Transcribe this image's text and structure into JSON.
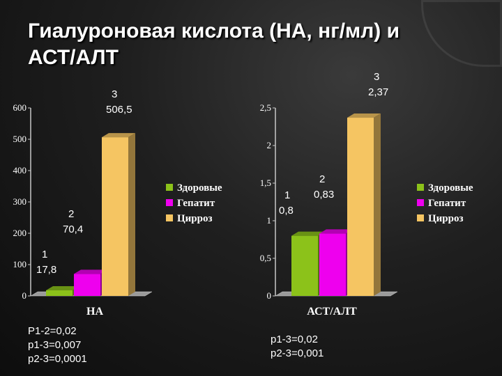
{
  "slide": {
    "title": "Гиалуроновая кислота (НА, нг/мл) и\nАСТ/АЛТ"
  },
  "colors": {
    "healthy": "#8cc21a",
    "hepatitis": "#ee00ee",
    "cirrhosis": "#f5c562",
    "axis": "#c8c8c8",
    "label": "#ffffff"
  },
  "chart_data": [
    {
      "type": "bar",
      "title": "",
      "xlabel": "НА",
      "ylabel": "",
      "ylim": [
        0,
        600
      ],
      "yticks": [
        "0",
        "100",
        "200",
        "300",
        "400",
        "500",
        "600"
      ],
      "grid": false,
      "legend_position": "right",
      "series": [
        {
          "name": "Здоровые",
          "values": [
            17.8
          ],
          "label": "1\n17,8"
        },
        {
          "name": "Гепатит",
          "values": [
            70.4
          ],
          "label": "2\n70,4"
        },
        {
          "name": "Цирроз",
          "values": [
            506.5
          ],
          "label": "3\n506,5"
        }
      ],
      "stats": [
        "Р1-2=0,02",
        "р1-3=0,007",
        "р2-3=0,0001"
      ]
    },
    {
      "type": "bar",
      "title": "",
      "xlabel": "АСТ/АЛТ",
      "ylabel": "",
      "ylim": [
        0,
        2.5
      ],
      "yticks": [
        "0",
        "0,5",
        "1",
        "1,5",
        "2",
        "2,5"
      ],
      "grid": false,
      "legend_position": "right",
      "series": [
        {
          "name": "Здоровые",
          "values": [
            0.8
          ],
          "label": "1\n0,8"
        },
        {
          "name": "Гепатит",
          "values": [
            0.83
          ],
          "label": "2\n0,83"
        },
        {
          "name": "Цирроз",
          "values": [
            2.37
          ],
          "label": "3\n2,37"
        }
      ],
      "stats": [
        "р1-3=0,02",
        "р2-3=0,001"
      ]
    }
  ]
}
